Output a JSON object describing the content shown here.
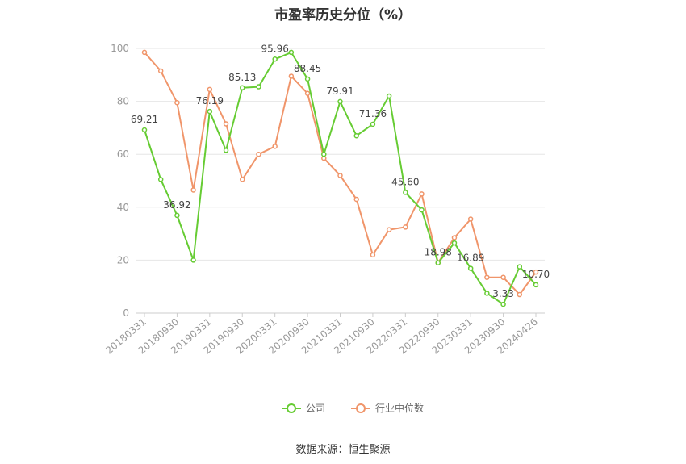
{
  "chart_data": {
    "type": "line",
    "title": "市盈率历史分位（%）",
    "source": "数据来源：恒生聚源",
    "xlabel": "",
    "ylabel": "",
    "ylim": [
      0,
      100
    ],
    "yticks": [
      0,
      20,
      40,
      60,
      80,
      100
    ],
    "grid": true,
    "legend_position": "bottom",
    "x": [
      "20180331",
      "20180630",
      "20180930",
      "20181231",
      "20190331",
      "20190630",
      "20190930",
      "20191231",
      "20200331",
      "20200630",
      "20200930",
      "20201231",
      "20210331",
      "20210630",
      "20210930",
      "20211231",
      "20220331",
      "20220630",
      "20220930",
      "20221231",
      "20230331",
      "20230630",
      "20230930",
      "20231231",
      "20240426"
    ],
    "x_tick_labels": [
      "20180331",
      "20180930",
      "20190331",
      "20190930",
      "20200331",
      "20200930",
      "20210331",
      "20210930",
      "20220331",
      "20220930",
      "20230331",
      "20230930",
      "20240426"
    ],
    "series": [
      {
        "name": "公司",
        "color": "#66cc33",
        "values": [
          69.21,
          50.5,
          36.92,
          20.0,
          76.19,
          61.5,
          85.13,
          85.5,
          95.96,
          98.5,
          88.45,
          60.0,
          79.91,
          67.0,
          71.36,
          82.0,
          45.6,
          39.0,
          18.98,
          26.5,
          16.89,
          7.5,
          3.33,
          17.5,
          10.7
        ],
        "labels": {
          "0": "69.21",
          "2": "36.92",
          "4": "76.19",
          "6": "85.13",
          "8": "95.96",
          "10": "88.45",
          "12": "79.91",
          "14": "71.36",
          "16": "45.60",
          "18": "18.98",
          "20": "16.89",
          "22": "3.33",
          "24": "10.70"
        }
      },
      {
        "name": "行业中位数",
        "color": "#f0956a",
        "values": [
          98.5,
          91.5,
          79.5,
          46.5,
          84.5,
          71.5,
          50.5,
          60.0,
          63.0,
          89.5,
          83.0,
          58.5,
          52.0,
          43.0,
          22.0,
          31.5,
          32.5,
          45.0,
          19.0,
          28.5,
          35.5,
          13.5,
          13.5,
          7.0,
          15.5
        ]
      }
    ]
  }
}
